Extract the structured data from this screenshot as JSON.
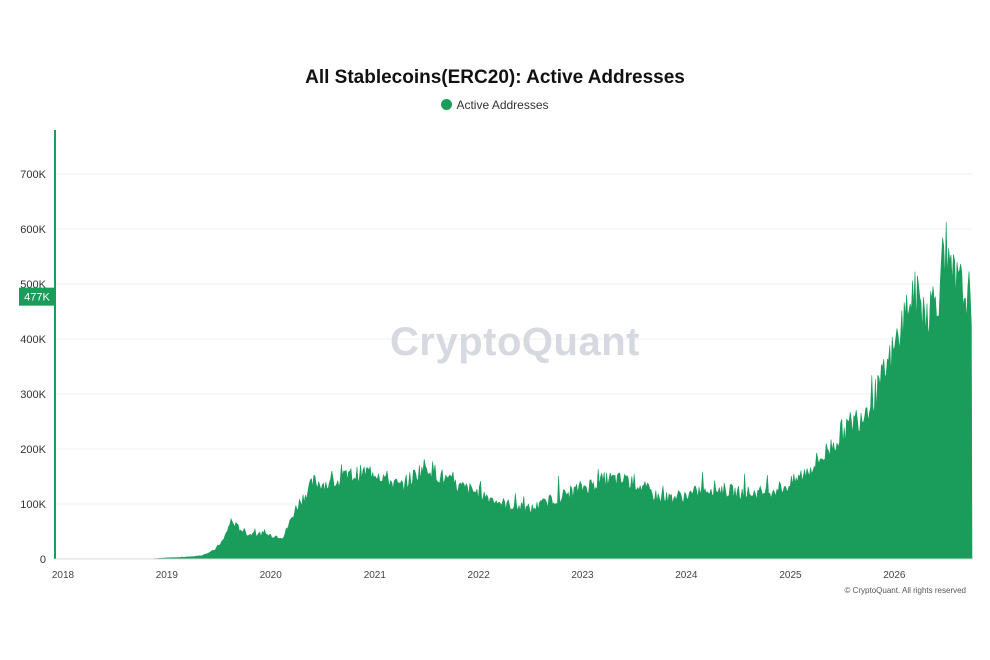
{
  "chart_data": {
    "type": "area",
    "title": "All Stablecoins(ERC20): Active Addresses",
    "legend": [
      "Active Addresses"
    ],
    "legend_position": "top-center",
    "series": [
      {
        "name": "Active Addresses",
        "color": "#1a9c5b",
        "x": [
          "2018-01-01",
          "2018-07-01",
          "2018-11-01",
          "2019-01-01",
          "2019-03-01",
          "2019-05-01",
          "2019-06-15",
          "2019-07-20",
          "2019-08-15",
          "2019-09-01",
          "2019-10-15",
          "2019-12-01",
          "2020-02-15",
          "2020-04-01",
          "2020-06-01",
          "2020-08-01",
          "2020-10-01",
          "2021-01-01",
          "2021-04-01",
          "2021-07-01",
          "2021-10-01",
          "2022-01-01",
          "2022-04-01",
          "2022-07-01",
          "2022-10-01",
          "2023-01-01",
          "2023-04-01",
          "2023-07-01",
          "2023-10-01",
          "2024-01-01",
          "2024-04-01",
          "2024-07-01",
          "2024-10-01",
          "2025-01-01",
          "2025-03-01",
          "2025-05-01",
          "2025-07-01",
          "2025-09-01",
          "2025-11-01",
          "2026-01-01",
          "2026-03-01",
          "2026-05-01",
          "2026-07-01",
          "2026-09-15"
        ],
        "values": [
          0,
          0,
          0,
          2000,
          3000,
          6000,
          15000,
          35000,
          70000,
          60000,
          45000,
          45000,
          40000,
          95000,
          140000,
          135000,
          150000,
          160000,
          130000,
          170000,
          135000,
          120000,
          100000,
          90000,
          110000,
          130000,
          145000,
          140000,
          110000,
          115000,
          130000,
          120000,
          120000,
          135000,
          160000,
          190000,
          230000,
          260000,
          300000,
          380000,
          480000,
          450000,
          520000,
          477000
        ]
      }
    ],
    "xticks": [
      "2018",
      "2019",
      "2020",
      "2021",
      "2022",
      "2023",
      "2024",
      "2025",
      "2026"
    ],
    "yticks": [
      "0",
      "100K",
      "200K",
      "300K",
      "400K",
      "500K",
      "600K",
      "700K"
    ],
    "ylim": [
      0,
      780000
    ],
    "grid": true,
    "current_value_label": "477K",
    "watermark": "CryptoQuant",
    "footer": "© CryptoQuant. All rights reserved"
  }
}
